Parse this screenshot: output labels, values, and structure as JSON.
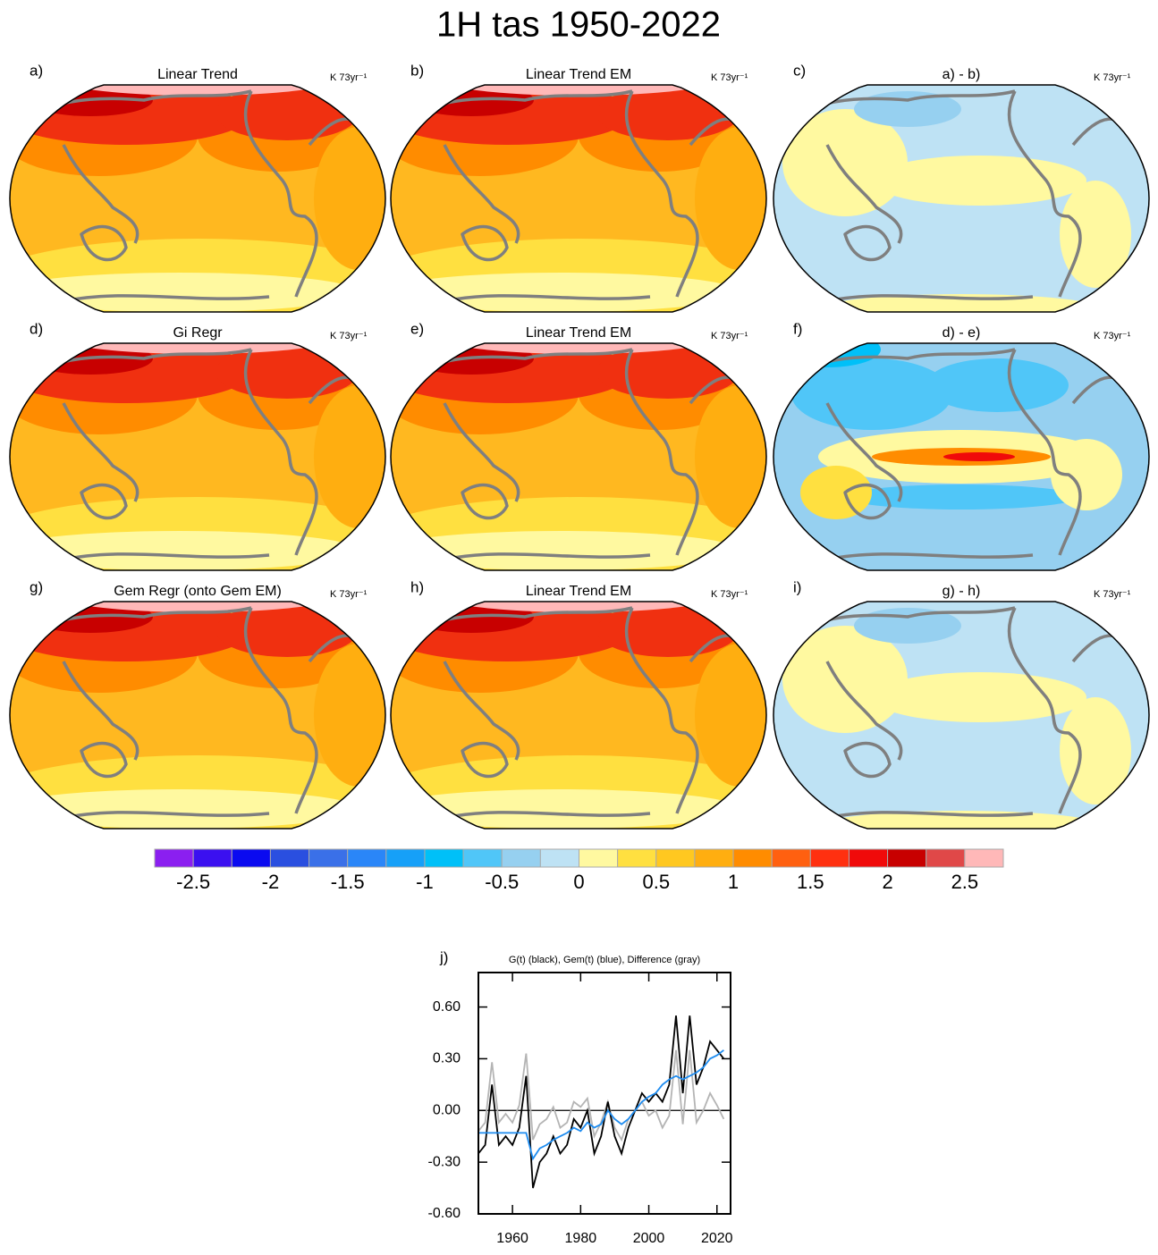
{
  "title": "1H tas 1950-2022",
  "panels": [
    {
      "label": "a)",
      "title": "Linear Trend",
      "units": "K 73yr⁻¹"
    },
    {
      "label": "b)",
      "title": "Linear Trend EM",
      "units": "K 73yr⁻¹"
    },
    {
      "label": "c)",
      "title": "a) - b)",
      "units": "K 73yr⁻¹"
    },
    {
      "label": "d)",
      "title": "Gi Regr",
      "units": "K 73yr⁻¹"
    },
    {
      "label": "e)",
      "title": "Linear Trend EM",
      "units": "K 73yr⁻¹"
    },
    {
      "label": "f)",
      "title": "d) - e)",
      "units": "K 73yr⁻¹"
    },
    {
      "label": "g)",
      "title": "Gem Regr (onto Gem EM)",
      "units": "K 73yr⁻¹"
    },
    {
      "label": "h)",
      "title": "Linear Trend EM",
      "units": "K 73yr⁻¹"
    },
    {
      "label": "i)",
      "title": "g) - h)",
      "units": "K 73yr⁻¹"
    }
  ],
  "colorbar": {
    "lim": [
      -2.75,
      2.75
    ],
    "colors": [
      "#8b1ff0",
      "#3b10f0",
      "#0a0af0",
      "#2a4fe0",
      "#3a70e8",
      "#2a86f8",
      "#16a0f8",
      "#00c0f8",
      "#50c6f8",
      "#96d0f0",
      "#bee2f4",
      "#fff9a0",
      "#ffe040",
      "#ffc820",
      "#ffae10",
      "#ff8c00",
      "#ff6010",
      "#ff3010",
      "#f00a0a",
      "#c80000",
      "#e04848",
      "#ffb8b8"
    ],
    "ticks": [
      -2.5,
      -2,
      -1.5,
      -1,
      -0.5,
      0,
      0.5,
      1,
      1.5,
      2,
      2.5
    ]
  },
  "chart_data": {
    "type": "line",
    "label": "j)",
    "title": "G(t)  (black), Gem(t) (blue), Difference (gray)",
    "x": [
      1950,
      1952,
      1954,
      1956,
      1958,
      1960,
      1962,
      1964,
      1966,
      1968,
      1970,
      1972,
      1974,
      1976,
      1978,
      1980,
      1982,
      1984,
      1986,
      1988,
      1990,
      1992,
      1994,
      1996,
      1998,
      2000,
      2002,
      2004,
      2006,
      2008,
      2010,
      2012,
      2014,
      2016,
      2018,
      2020,
      2022
    ],
    "xlim": [
      1950,
      2024
    ],
    "xticks": [
      1960,
      1980,
      2000,
      2020
    ],
    "ylim": [
      -0.6,
      0.8
    ],
    "yticks": [
      {
        "value": -0.6,
        "label": "-0.60"
      },
      {
        "value": -0.3,
        "label": "-0.30"
      },
      {
        "value": 0,
        "label": "0.00"
      },
      {
        "value": 0.3,
        "label": "0.30"
      },
      {
        "value": 0.6,
        "label": "0.60"
      }
    ],
    "zero_line": 0,
    "series": [
      {
        "color": "#b4b4b4",
        "values": [
          -0.12,
          -0.07,
          0.28,
          -0.07,
          -0.02,
          -0.07,
          0.03,
          0.33,
          -0.17,
          -0.08,
          -0.05,
          0.02,
          -0.1,
          -0.07,
          0.05,
          0.02,
          0.07,
          -0.15,
          -0.07,
          0.05,
          -0.1,
          -0.17,
          -0.05,
          0,
          0.05,
          -0.03,
          0,
          -0.1,
          -0.03,
          0.35,
          -0.08,
          0.35,
          -0.07,
          0,
          0.1,
          0.03,
          -0.05
        ]
      },
      {
        "color": "#000000",
        "values": [
          -0.25,
          -0.2,
          0.15,
          -0.2,
          -0.15,
          -0.2,
          -0.1,
          0.2,
          -0.45,
          -0.3,
          -0.25,
          -0.15,
          -0.25,
          -0.2,
          -0.05,
          -0.1,
          0,
          -0.25,
          -0.15,
          0.05,
          -0.15,
          -0.25,
          -0.1,
          0,
          0.1,
          0.05,
          0.1,
          0.05,
          0.15,
          0.55,
          0.1,
          0.55,
          0.15,
          0.25,
          0.4,
          0.35,
          0.3
        ]
      },
      {
        "color": "#1e8cf0",
        "values": [
          -0.13,
          -0.13,
          -0.13,
          -0.13,
          -0.13,
          -0.13,
          -0.13,
          -0.13,
          -0.28,
          -0.22,
          -0.2,
          -0.17,
          -0.15,
          -0.13,
          -0.1,
          -0.12,
          -0.07,
          -0.1,
          -0.08,
          0,
          -0.05,
          -0.08,
          -0.05,
          0,
          0.05,
          0.08,
          0.1,
          0.15,
          0.18,
          0.2,
          0.18,
          0.2,
          0.22,
          0.25,
          0.3,
          0.32,
          0.35
        ]
      }
    ]
  }
}
